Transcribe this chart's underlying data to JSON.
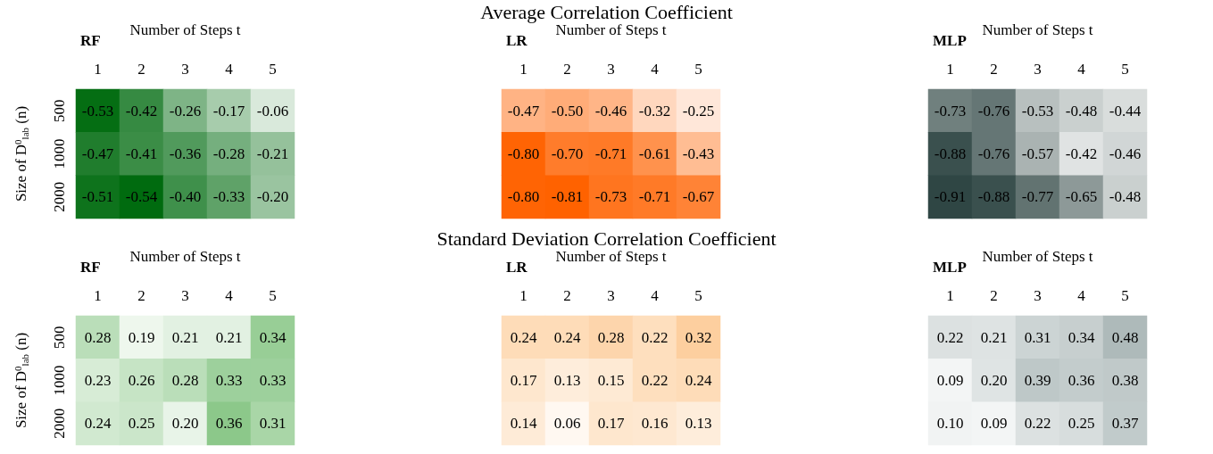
{
  "chart_data": [
    {
      "type": "heatmap",
      "title": "RF",
      "xlabel": "Number of Steps t",
      "ylabel": "Size of D$^{0}$$_{lab}$ (n)",
      "color": "#006b0f",
      "categories": [
        "1",
        "2",
        "3",
        "4",
        "5"
      ],
      "y_categories": [
        "500",
        "1000",
        "2000"
      ],
      "cells": [
        [
          -0.53,
          -0.42,
          -0.26,
          -0.17,
          -0.06
        ],
        [
          -0.47,
          -0.41,
          -0.36,
          -0.28,
          -0.21
        ],
        [
          -0.51,
          -0.54,
          -0.4,
          -0.33,
          -0.2
        ]
      ],
      "cell_labels": [
        [
          "-0.53",
          "-0.42",
          "-0.26",
          "-0.17",
          "-0.06"
        ],
        [
          "-0.47",
          "-0.41",
          "-0.36",
          "-0.28",
          "-0.21"
        ],
        [
          "-0.51",
          "-0.54",
          "-0.40",
          "-0.33",
          "-0.20"
        ]
      ]
    },
    {
      "type": "heatmap",
      "title": "LR",
      "xlabel": "Number of Steps t",
      "annotations": [
        "Average Correlation Coefficient"
      ],
      "color": "#ff6200",
      "tick_labels": "x",
      "categories": [
        "1",
        "2",
        "3",
        "4",
        "5"
      ],
      "y_categories": [
        "500",
        "1000",
        "2000"
      ],
      "cells": [
        [
          -0.47,
          -0.5,
          -0.46,
          -0.32,
          -0.25
        ],
        [
          -0.8,
          -0.7,
          -0.71,
          -0.61,
          -0.43
        ],
        [
          -0.8,
          -0.81,
          -0.73,
          -0.71,
          -0.67
        ]
      ],
      "cell_labels": [
        [
          "-0.47",
          "-0.50",
          "-0.46",
          "-0.32",
          "-0.25"
        ],
        [
          "-0.80",
          "-0.70",
          "-0.71",
          "-0.61",
          "-0.43"
        ],
        [
          "-0.80",
          "-0.81",
          "-0.73",
          "-0.71",
          "-0.67"
        ]
      ]
    },
    {
      "type": "heatmap",
      "title": "MLP",
      "xlabel": "Number of Steps t",
      "color": "#2f4644",
      "tick_labels": "x",
      "categories": [
        "1",
        "2",
        "3",
        "4",
        "5"
      ],
      "y_categories": [
        "500",
        "1000",
        "2000"
      ],
      "cells": [
        [
          -0.73,
          -0.76,
          -0.53,
          -0.48,
          -0.44
        ],
        [
          -0.88,
          -0.76,
          -0.57,
          -0.42,
          -0.46
        ],
        [
          -0.91,
          -0.88,
          -0.77,
          -0.65,
          -0.48
        ]
      ],
      "cell_labels": [
        [
          "-0.73",
          "-0.76",
          "-0.53",
          "-0.48",
          "-0.44"
        ],
        [
          "-0.88",
          "-0.76",
          "-0.57",
          "-0.42",
          "-0.46"
        ],
        [
          "-0.91",
          "-0.88",
          "-0.77",
          "-0.65",
          "-0.48"
        ]
      ]
    },
    {
      "type": "heatmap",
      "title": "RF",
      "xlabel": "Number of Steps t",
      "ylabel": "Size of D$^{0}$$_{lab}$ (n)",
      "color": "#8cc88a",
      "categories": [
        "1",
        "2",
        "3",
        "4",
        "5"
      ],
      "y_categories": [
        "500",
        "1000",
        "2000"
      ],
      "cells": [
        [
          0.28,
          0.19,
          0.21,
          0.21,
          0.34
        ],
        [
          0.23,
          0.26,
          0.28,
          0.33,
          0.33
        ],
        [
          0.24,
          0.25,
          0.2,
          0.36,
          0.31
        ]
      ],
      "cell_labels": [
        [
          "0.28",
          "0.19",
          "0.21",
          "0.21",
          "0.34"
        ],
        [
          "0.23",
          "0.26",
          "0.28",
          "0.33",
          "0.33"
        ],
        [
          "0.24",
          "0.25",
          "0.20",
          "0.36",
          "0.31"
        ]
      ]
    },
    {
      "type": "heatmap",
      "title": "LR",
      "xlabel": "Number of Steps t",
      "annotations": [
        "Standard Deviation Correlation Coefficient"
      ],
      "color": "#fdcf9f",
      "tick_labels": "x",
      "categories": [
        "1",
        "2",
        "3",
        "4",
        "5"
      ],
      "y_categories": [
        "500",
        "1000",
        "2000"
      ],
      "cells": [
        [
          0.24,
          0.24,
          0.28,
          0.22,
          0.32
        ],
        [
          0.17,
          0.13,
          0.15,
          0.22,
          0.24
        ],
        [
          0.14,
          0.06,
          0.17,
          0.16,
          0.13
        ]
      ],
      "cell_labels": [
        [
          "0.24",
          "0.24",
          "0.28",
          "0.22",
          "0.32"
        ],
        [
          "0.17",
          "0.13",
          "0.15",
          "0.22",
          "0.24"
        ],
        [
          "0.14",
          "0.06",
          "0.17",
          "0.16",
          "0.13"
        ]
      ]
    },
    {
      "type": "heatmap",
      "title": "MLP",
      "xlabel": "Number of Steps t",
      "color": "#aebaba",
      "tick_labels": "x",
      "categories": [
        "1",
        "2",
        "3",
        "4",
        "5"
      ],
      "y_categories": [
        "500",
        "1000",
        "2000"
      ],
      "cells": [
        [
          0.22,
          0.21,
          0.31,
          0.34,
          0.48
        ],
        [
          0.09,
          0.2,
          0.39,
          0.36,
          0.38
        ],
        [
          0.1,
          0.09,
          0.22,
          0.25,
          0.37
        ]
      ],
      "cell_labels": [
        [
          "0.22",
          "0.21",
          "0.31",
          "0.34",
          "0.48"
        ],
        [
          "0.09",
          "0.20",
          "0.39",
          "0.36",
          "0.38"
        ],
        [
          "0.10",
          "0.09",
          "0.22",
          "0.25",
          "0.37"
        ]
      ]
    }
  ]
}
